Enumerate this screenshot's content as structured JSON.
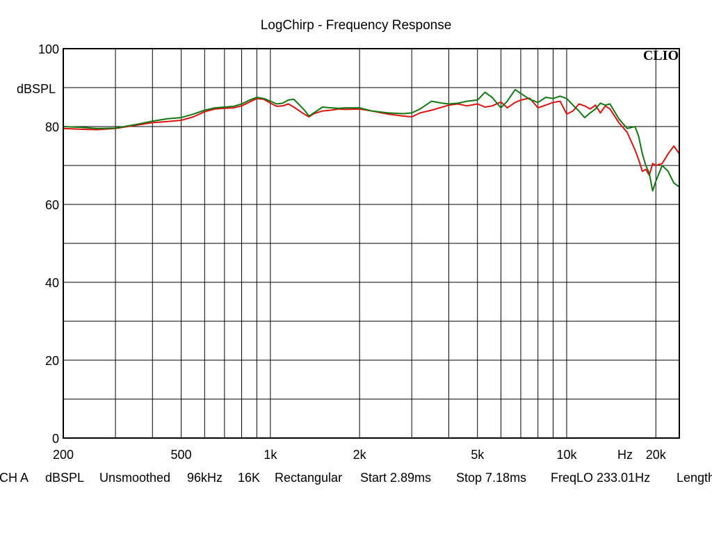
{
  "chart_data": {
    "type": "line",
    "title": "LogChirp - Frequency Response",
    "ylabel": "dBSPL",
    "xlabel": "Hz",
    "xscale": "log",
    "xlim": [
      200,
      24000
    ],
    "ylim": [
      0,
      100
    ],
    "grid": true,
    "yticks": [
      0,
      20,
      40,
      60,
      80,
      100
    ],
    "xtick_labels": [
      {
        "value": 200,
        "label": "200"
      },
      {
        "value": 500,
        "label": "500"
      },
      {
        "value": 1000,
        "label": "1k"
      },
      {
        "value": 2000,
        "label": "2k"
      },
      {
        "value": 5000,
        "label": "5k"
      },
      {
        "value": 10000,
        "label": "10k"
      },
      {
        "value": 20000,
        "label": "20k"
      }
    ],
    "logo": "CLIO",
    "series": [
      {
        "color": "#dd1111",
        "points": [
          [
            200,
            79.5
          ],
          [
            230,
            79.3
          ],
          [
            260,
            79.2
          ],
          [
            300,
            79.5
          ],
          [
            350,
            80.3
          ],
          [
            400,
            81
          ],
          [
            450,
            81.3
          ],
          [
            500,
            81.6
          ],
          [
            550,
            82.5
          ],
          [
            600,
            83.8
          ],
          [
            650,
            84.5
          ],
          [
            700,
            84.7
          ],
          [
            750,
            84.8
          ],
          [
            800,
            85.3
          ],
          [
            850,
            86.3
          ],
          [
            900,
            87.2
          ],
          [
            950,
            87
          ],
          [
            1000,
            86
          ],
          [
            1050,
            85.2
          ],
          [
            1100,
            85.3
          ],
          [
            1150,
            85.8
          ],
          [
            1200,
            85
          ],
          [
            1300,
            83.2
          ],
          [
            1350,
            82.5
          ],
          [
            1400,
            83.3
          ],
          [
            1500,
            84
          ],
          [
            1600,
            84.2
          ],
          [
            1700,
            84.5
          ],
          [
            1800,
            84.4
          ],
          [
            2000,
            84.5
          ],
          [
            2200,
            84
          ],
          [
            2500,
            83.2
          ],
          [
            2800,
            82.7
          ],
          [
            3000,
            82.5
          ],
          [
            3200,
            83.5
          ],
          [
            3500,
            84.2
          ],
          [
            3800,
            85
          ],
          [
            4000,
            85.5
          ],
          [
            4300,
            85.8
          ],
          [
            4600,
            85.3
          ],
          [
            5000,
            85.8
          ],
          [
            5300,
            85
          ],
          [
            5600,
            85.3
          ],
          [
            6000,
            86.3
          ],
          [
            6300,
            84.8
          ],
          [
            6700,
            86.2
          ],
          [
            7000,
            86.8
          ],
          [
            7500,
            87.3
          ],
          [
            8000,
            84.8
          ],
          [
            8500,
            85.5
          ],
          [
            9000,
            86.2
          ],
          [
            9500,
            86.5
          ],
          [
            10000,
            83.2
          ],
          [
            10500,
            84
          ],
          [
            11000,
            85.8
          ],
          [
            11500,
            85.3
          ],
          [
            12000,
            84.5
          ],
          [
            12500,
            85.5
          ],
          [
            13000,
            83.5
          ],
          [
            13500,
            85.3
          ],
          [
            14000,
            84.5
          ],
          [
            15000,
            81
          ],
          [
            16000,
            78.5
          ],
          [
            17000,
            74
          ],
          [
            17500,
            71.5
          ],
          [
            18000,
            68.5
          ],
          [
            18500,
            69
          ],
          [
            19000,
            67.5
          ],
          [
            19500,
            70.5
          ],
          [
            20000,
            70
          ],
          [
            21000,
            70.5
          ],
          [
            22000,
            73
          ],
          [
            23000,
            75
          ],
          [
            24000,
            73
          ]
        ]
      },
      {
        "color": "#117711",
        "points": [
          [
            200,
            80
          ],
          [
            230,
            79.8
          ],
          [
            260,
            79.5
          ],
          [
            300,
            79.6
          ],
          [
            350,
            80.5
          ],
          [
            400,
            81.4
          ],
          [
            450,
            82
          ],
          [
            500,
            82.3
          ],
          [
            550,
            83.2
          ],
          [
            600,
            84.2
          ],
          [
            650,
            84.8
          ],
          [
            700,
            85
          ],
          [
            750,
            85.2
          ],
          [
            800,
            85.8
          ],
          [
            850,
            86.8
          ],
          [
            900,
            87.5
          ],
          [
            950,
            87.2
          ],
          [
            1000,
            86.5
          ],
          [
            1050,
            85.8
          ],
          [
            1100,
            86
          ],
          [
            1150,
            86.8
          ],
          [
            1200,
            87
          ],
          [
            1300,
            84.3
          ],
          [
            1350,
            82.7
          ],
          [
            1400,
            83.5
          ],
          [
            1500,
            85
          ],
          [
            1600,
            84.8
          ],
          [
            1700,
            84.7
          ],
          [
            1800,
            84.8
          ],
          [
            2000,
            84.8
          ],
          [
            2200,
            84
          ],
          [
            2500,
            83.5
          ],
          [
            2800,
            83.3
          ],
          [
            3000,
            83.5
          ],
          [
            3200,
            84.5
          ],
          [
            3500,
            86.5
          ],
          [
            3800,
            86
          ],
          [
            4000,
            85.8
          ],
          [
            4300,
            86
          ],
          [
            4600,
            86.5
          ],
          [
            5000,
            86.8
          ],
          [
            5300,
            88.8
          ],
          [
            5600,
            87.5
          ],
          [
            6000,
            84.8
          ],
          [
            6300,
            86.5
          ],
          [
            6700,
            89.5
          ],
          [
            7000,
            88.5
          ],
          [
            7500,
            87
          ],
          [
            8000,
            86.2
          ],
          [
            8500,
            87.5
          ],
          [
            9000,
            87.2
          ],
          [
            9500,
            87.8
          ],
          [
            10000,
            87.2
          ],
          [
            10500,
            85.5
          ],
          [
            11000,
            84
          ],
          [
            11500,
            82.3
          ],
          [
            12000,
            83.5
          ],
          [
            12500,
            84.5
          ],
          [
            13000,
            86
          ],
          [
            13500,
            85.5
          ],
          [
            14000,
            85.8
          ],
          [
            15000,
            82
          ],
          [
            16000,
            79.5
          ],
          [
            17000,
            80
          ],
          [
            17500,
            77.5
          ],
          [
            18000,
            73
          ],
          [
            18500,
            70
          ],
          [
            19000,
            68
          ],
          [
            19500,
            63.5
          ],
          [
            20000,
            66
          ],
          [
            21000,
            70
          ],
          [
            22000,
            68.5
          ],
          [
            23000,
            65.5
          ],
          [
            24000,
            64.5
          ]
        ]
      }
    ]
  },
  "footer": {
    "items": [
      "CH A",
      "dBSPL",
      "Unsmoothed",
      "96kHz",
      "16K",
      "Rectangular",
      "Start 2.89ms",
      "Stop 7.18ms",
      "FreqLO 233.01Hz",
      "Length"
    ]
  }
}
